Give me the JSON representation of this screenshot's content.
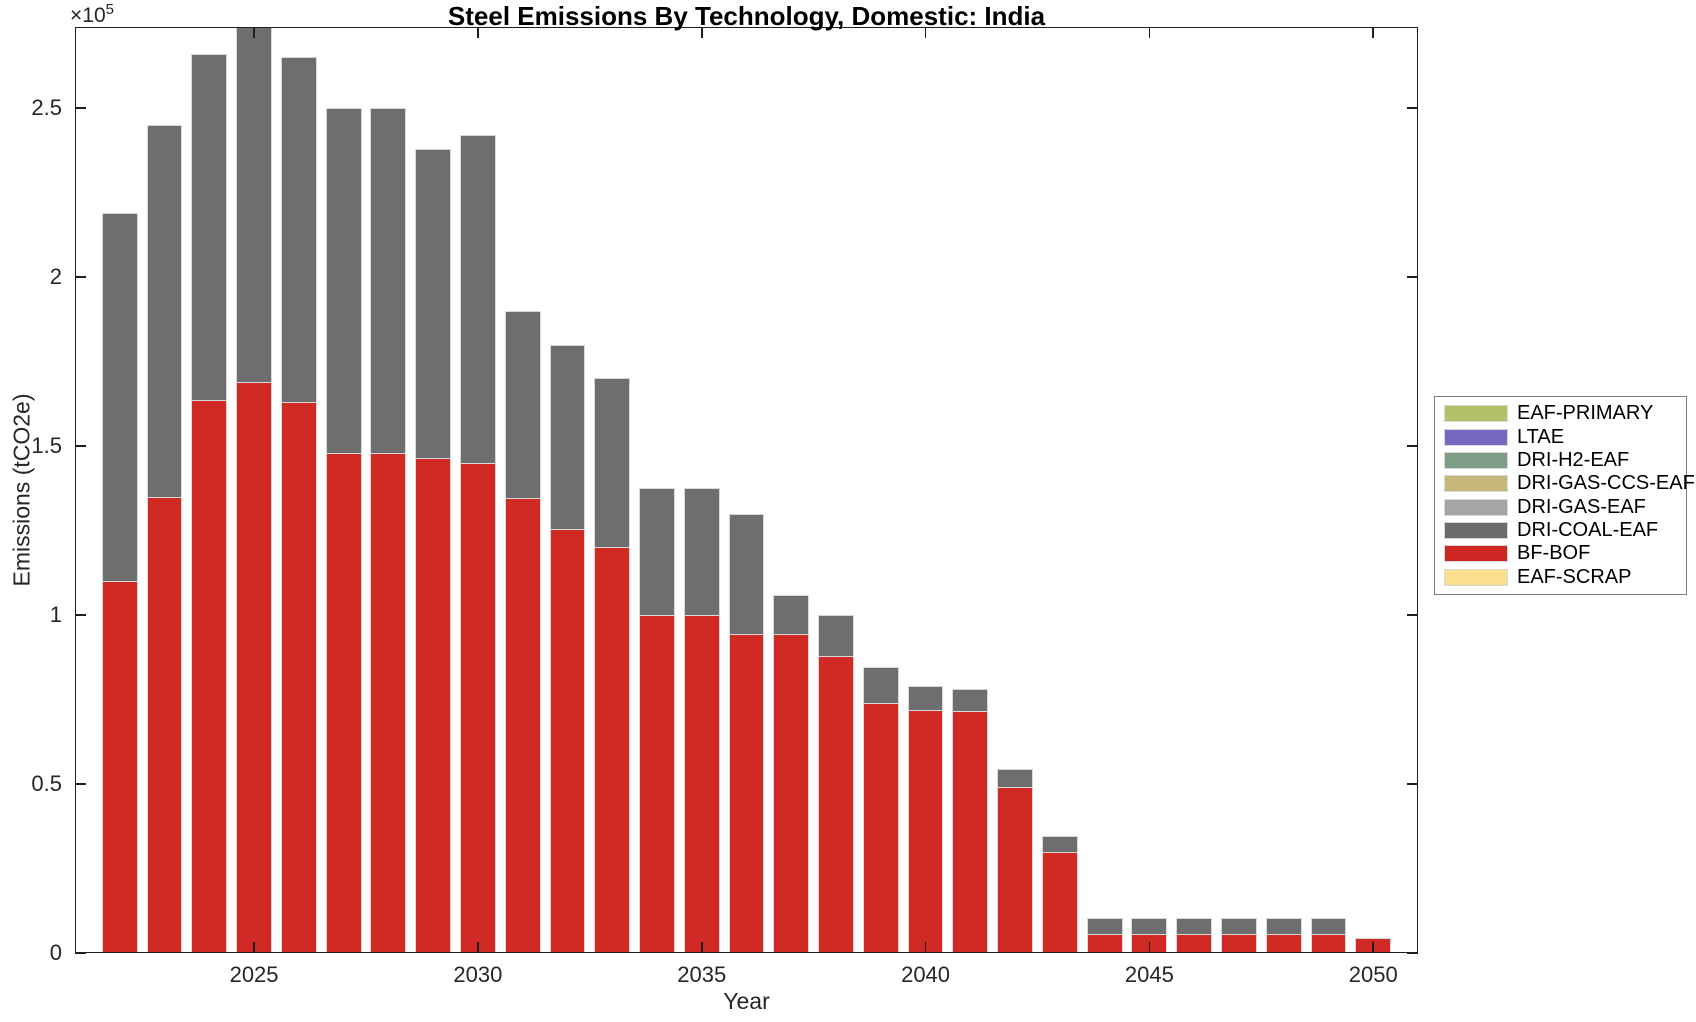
{
  "figure": {
    "background": "#ffffff"
  },
  "chart_data": {
    "type": "bar",
    "stacked": true,
    "title": "Steel Emissions By Technology, Domestic: India",
    "xlabel": "Year",
    "ylabel": "Emissions (tCO2e)",
    "y_exponent": {
      "base": "×10",
      "power": "5"
    },
    "grid": false,
    "xlim": [
      2021,
      2051
    ],
    "ylim": [
      0,
      274000
    ],
    "bar_width_fraction": 0.8,
    "bar_edge_color": "#d8d8d8",
    "axis_color": "#1f1f1f",
    "years": [
      2022,
      2023,
      2024,
      2025,
      2026,
      2027,
      2028,
      2029,
      2030,
      2031,
      2032,
      2033,
      2034,
      2035,
      2036,
      2037,
      2038,
      2039,
      2040,
      2041,
      2042,
      2043,
      2044,
      2045,
      2046,
      2047,
      2048,
      2049,
      2050
    ],
    "series": [
      {
        "name": "BF-BOF",
        "color": "#d02a25",
        "values": [
          110000,
          135000,
          163500,
          169000,
          163000,
          148000,
          148000,
          146500,
          145000,
          134500,
          125500,
          120000,
          100000,
          100000,
          94500,
          94500,
          88000,
          74000,
          72000,
          71500,
          49000,
          30000,
          5500,
          5500,
          5500,
          5500,
          5500,
          5500,
          4400
        ]
      },
      {
        "name": "DRI-COAL-EAF",
        "color": "#6e6e6e",
        "values": [
          109000,
          110000,
          102500,
          107000,
          102000,
          102000,
          102000,
          91500,
          97000,
          55500,
          54500,
          50000,
          37500,
          37500,
          35500,
          11500,
          12000,
          10500,
          7000,
          6500,
          5500,
          4500,
          5000,
          5000,
          5000,
          5000,
          5000,
          5000,
          0
        ]
      }
    ],
    "xticks": [
      {
        "value": 2025,
        "label": "2025"
      },
      {
        "value": 2030,
        "label": "2030"
      },
      {
        "value": 2035,
        "label": "2035"
      },
      {
        "value": 2040,
        "label": "2040"
      },
      {
        "value": 2045,
        "label": "2045"
      },
      {
        "value": 2050,
        "label": "2050"
      }
    ],
    "yticks": [
      {
        "value": 0,
        "label": "0"
      },
      {
        "value": 50000,
        "label": "0.5"
      },
      {
        "value": 100000,
        "label": "1"
      },
      {
        "value": 150000,
        "label": "1.5"
      },
      {
        "value": 200000,
        "label": "2"
      },
      {
        "value": 250000,
        "label": "2.5"
      }
    ],
    "legend": {
      "position": "right-outside",
      "entries": [
        {
          "label": "EAF-PRIMARY",
          "color": "#b5c169"
        },
        {
          "label": "LTAE",
          "color": "#7468c1"
        },
        {
          "label": "DRI-H2-EAF",
          "color": "#7d9d87"
        },
        {
          "label": "DRI-GAS-CCS-EAF",
          "color": "#c5b878"
        },
        {
          "label": "DRI-GAS-EAF",
          "color": "#a5a5a5"
        },
        {
          "label": "DRI-COAL-EAF",
          "color": "#6b6b6b"
        },
        {
          "label": "BF-BOF",
          "color": "#cd2723"
        },
        {
          "label": "EAF-SCRAP",
          "color": "#fbdf90"
        }
      ]
    }
  }
}
